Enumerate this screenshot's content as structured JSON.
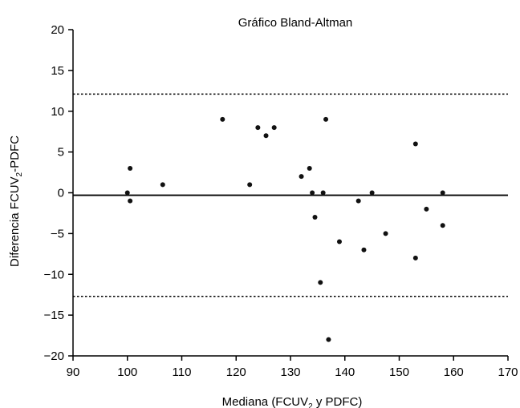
{
  "chart_data": {
    "type": "scatter",
    "title": "Gráfico Bland-Altman",
    "xlabel": {
      "before": "Mediana (FCUV",
      "sub": "2",
      "after": " y PDFC)"
    },
    "ylabel": {
      "before": "Diferencia FCUV",
      "sub": "2",
      "after": "-PDFC"
    },
    "xlim": [
      90,
      170
    ],
    "ylim": [
      -20,
      20
    ],
    "xticks": [
      90,
      100,
      110,
      120,
      130,
      140,
      150,
      160,
      170
    ],
    "xtick_labels": [
      "90",
      "100",
      "110",
      "120",
      "130",
      "140",
      "150",
      "160",
      "170"
    ],
    "yticks": [
      20,
      15,
      10,
      5,
      0,
      -5,
      -10,
      -15,
      -20
    ],
    "ytick_labels": [
      "20",
      "15",
      "10",
      "5",
      "0",
      "−5",
      "−10",
      "−15",
      "−20"
    ],
    "mean_difference": -0.3,
    "upper_limit": 12.1,
    "lower_limit": -12.7,
    "grid": false,
    "legend": "none",
    "points": [
      {
        "x": 100,
        "y": 0
      },
      {
        "x": 100.5,
        "y": 3
      },
      {
        "x": 100.5,
        "y": -1
      },
      {
        "x": 106.5,
        "y": 1
      },
      {
        "x": 117.5,
        "y": 9
      },
      {
        "x": 122.5,
        "y": 1
      },
      {
        "x": 124,
        "y": 8
      },
      {
        "x": 125.5,
        "y": 7
      },
      {
        "x": 127,
        "y": 8
      },
      {
        "x": 132,
        "y": 2
      },
      {
        "x": 133.5,
        "y": 3
      },
      {
        "x": 134,
        "y": 0
      },
      {
        "x": 134.5,
        "y": -3
      },
      {
        "x": 135.5,
        "y": -11
      },
      {
        "x": 136,
        "y": 0
      },
      {
        "x": 136.5,
        "y": 9
      },
      {
        "x": 137,
        "y": -18
      },
      {
        "x": 139,
        "y": -6
      },
      {
        "x": 142.5,
        "y": -1
      },
      {
        "x": 143.5,
        "y": -7
      },
      {
        "x": 145,
        "y": 0
      },
      {
        "x": 147.5,
        "y": -5
      },
      {
        "x": 153,
        "y": 6
      },
      {
        "x": 153,
        "y": -8
      },
      {
        "x": 155,
        "y": -2
      },
      {
        "x": 158,
        "y": 0
      },
      {
        "x": 158,
        "y": -4
      }
    ],
    "colors": {
      "points": "#111111",
      "lines": "#000000"
    }
  }
}
